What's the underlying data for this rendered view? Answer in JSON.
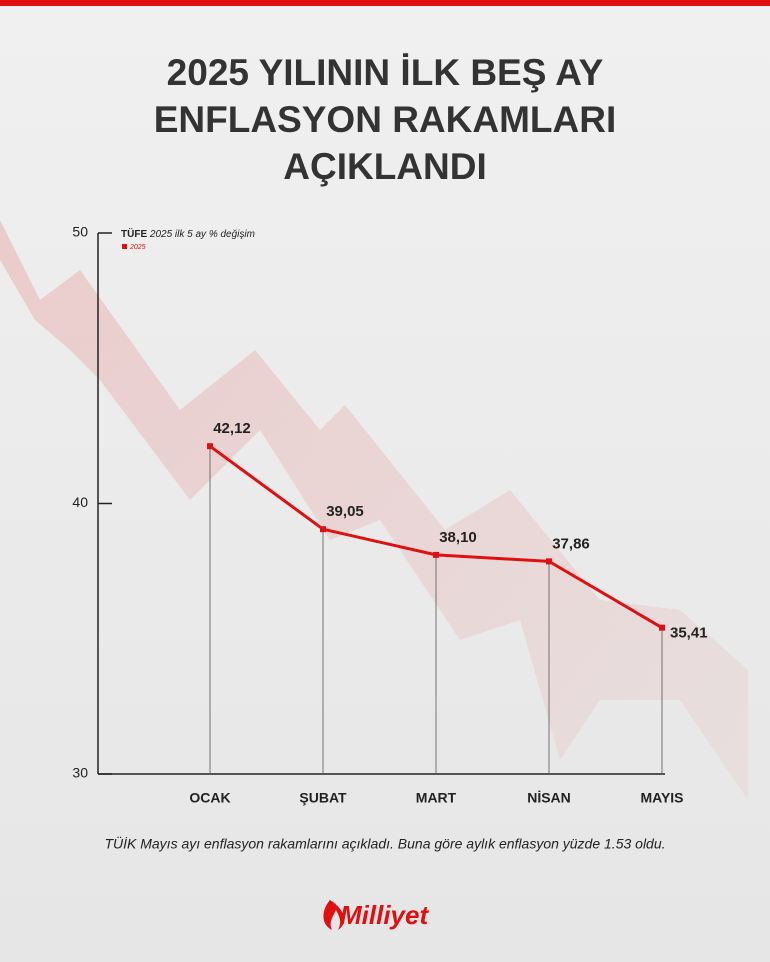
{
  "chart_data": {
    "type": "line",
    "title": [
      "2025 YILININ İLK BEŞ AY",
      "ENFLASYON RAKAMLARI",
      "AÇIKLANDI"
    ],
    "legend_title": "TÜFE",
    "legend_subtitle": "2025 ilk 5 ay % değişim",
    "categories": [
      "OCAK",
      "ŞUBAT",
      "MART",
      "NİSAN",
      "MAYIS"
    ],
    "series": [
      {
        "name": "2025",
        "color": "#e01010",
        "values": [
          42.12,
          39.05,
          38.1,
          37.86,
          35.41
        ],
        "value_labels": [
          "42,12",
          "39,05",
          "38,10",
          "37,86",
          "35,41"
        ]
      }
    ],
    "ylim": [
      30,
      50
    ],
    "yticks": [
      30,
      40,
      50
    ],
    "footnote": "TÜİK Mayıs ayı enflasyon rakamlarını açıkladı. Buna göre aylık enflasyon yüzde 1.53 oldu.",
    "brand": "Milliyet"
  }
}
